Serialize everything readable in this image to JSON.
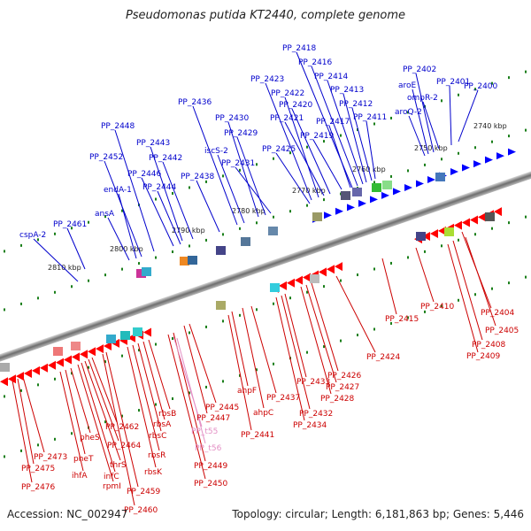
{
  "title": "Pseudomonas putida KT2440, complete genome",
  "footer": {
    "accession": "Accession: NC_002947",
    "summary": "Topology: circular; Length: 6,181,863 bp; Genes: 5,446"
  },
  "colors": {
    "top_label": "#0000cc",
    "bottom_label": "#cc0000",
    "trna_label": "#e38fc4",
    "forward_gene": "#0000ff",
    "reverse_gene": "#ff0000",
    "tick": "#1a7f1a",
    "backbone": "#808080"
  },
  "diagram": {
    "ticks": [
      "2740 kbp",
      "2750 kbp",
      "2760 kbp",
      "2770 kbp",
      "2780 kbp",
      "2790 kbp",
      "2800 kbp",
      "2810 kbp"
    ],
    "top_labels": [
      "PP_2418",
      "PP_2416",
      "PP_2414",
      "PP_2413",
      "PP_2412",
      "PP_2411",
      "PP_2417",
      "PP_2419",
      "PP_2420",
      "PP_2421",
      "PP_2422",
      "PP_2423",
      "PP_2425",
      "PP_2429",
      "PP_2430",
      "PP_2431",
      "PP_2436",
      "PP_2438",
      "iscS-2",
      "PP_2442",
      "PP_2443",
      "PP_2444",
      "PP_2446",
      "PP_2448",
      "PP_2452",
      "endA-1",
      "ansA",
      "PP_2461",
      "cspA-2",
      "PP_2402",
      "PP_2401",
      "PP_2400",
      "aroE",
      "ompR-2",
      "aroQ-2"
    ],
    "bottom_labels": [
      "PP_2404",
      "PP_2405",
      "PP_2408",
      "PP_2409",
      "PP_2410",
      "PP_2415",
      "PP_2424",
      "PP_2426",
      "PP_2427",
      "PP_2428",
      "PP_2432",
      "PP_2433",
      "PP_2434",
      "PP_2437",
      "ahpF",
      "ahpC",
      "PP_2441",
      "PP_2445",
      "PP_2447",
      "PP_2449",
      "PP_2450",
      "rbsB",
      "rbsA",
      "rbsC",
      "rbsR",
      "rbsK",
      "PP_2459",
      "PP_2460",
      "PP_2462",
      "PP_2464",
      "thrS",
      "infC",
      "rpmI",
      "pheS",
      "pheT",
      "ihfA",
      "PP_2473",
      "PP_2475",
      "PP_2476"
    ],
    "trna_labels": [
      "PP_t55",
      "PP_t56"
    ]
  }
}
